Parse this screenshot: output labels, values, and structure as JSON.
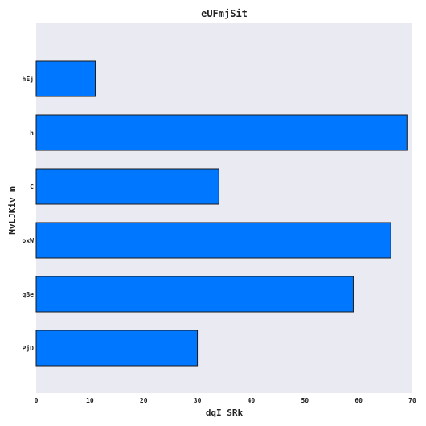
{
  "chart_data": {
    "type": "bar",
    "orientation": "horizontal",
    "title": "eUFmjSit",
    "xlabel": "dqI SRk",
    "ylabel": "MvLJKiv m",
    "categories": [
      "hEj",
      "h",
      "C",
      "oxW",
      "qBe",
      "PjD"
    ],
    "values": [
      11,
      69,
      34,
      66,
      59,
      30
    ],
    "xlim": [
      0,
      70
    ],
    "xticks": [
      0,
      10,
      20,
      30,
      40,
      50,
      60,
      70
    ],
    "grid": false,
    "bar_color": "#0077ff",
    "background_color": "#e9eaf2"
  }
}
